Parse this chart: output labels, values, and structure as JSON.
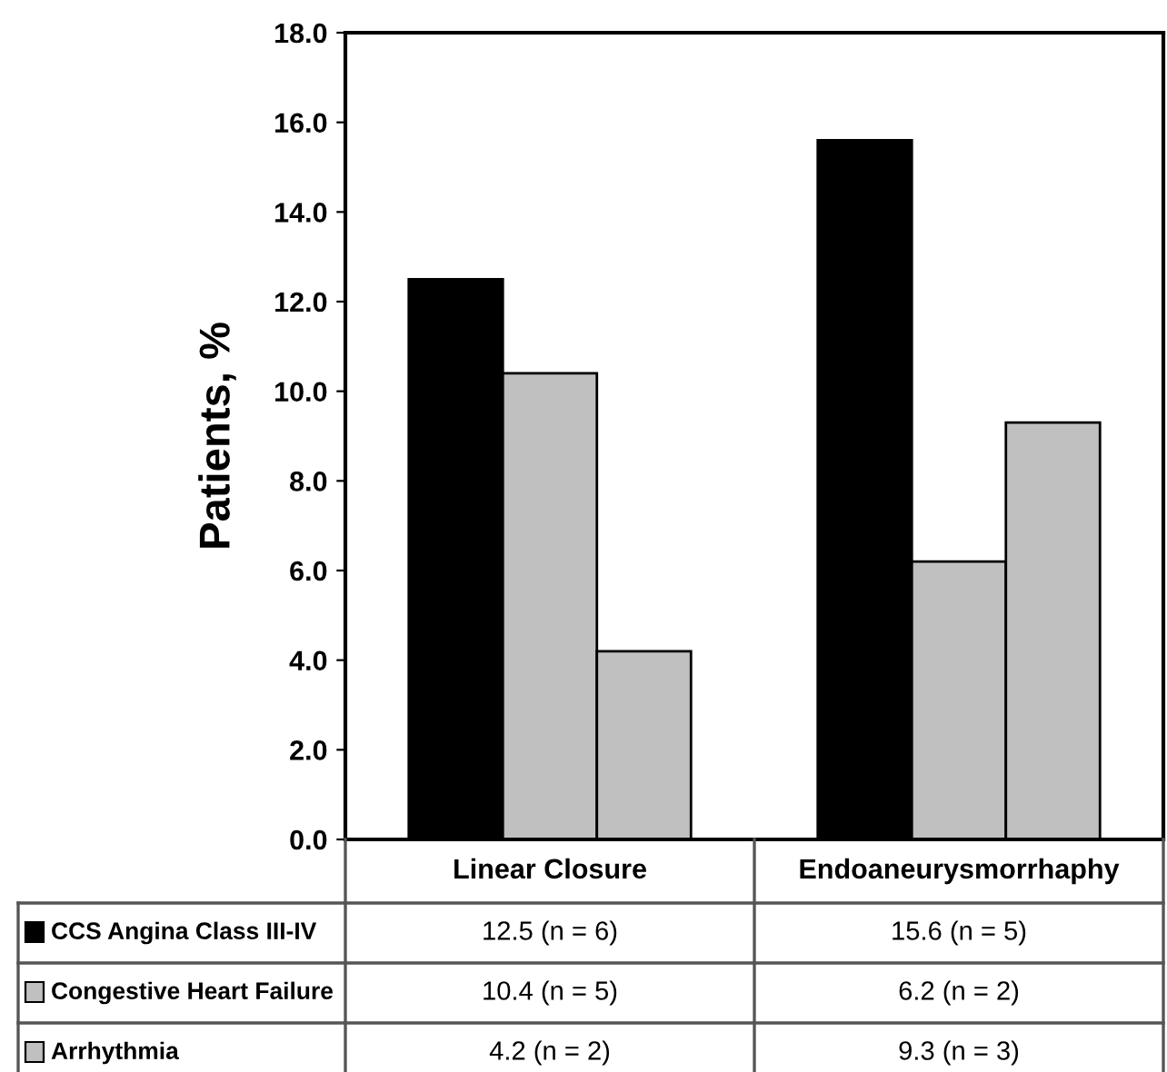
{
  "chart_data": {
    "type": "bar",
    "ylabel": "Patients, %",
    "categories": [
      "Linear Closure",
      "Endoaneurysmorrhaphy"
    ],
    "series": [
      {
        "name": "CCS Angina Class III-IV",
        "color": "#000000",
        "values": [
          12.5,
          15.6
        ],
        "value_labels": [
          "12.5 (n = 6)",
          "15.6 (n = 5)"
        ]
      },
      {
        "name": "Congestive Heart Failure",
        "color": "#c0c0c0",
        "values": [
          10.4,
          6.2
        ],
        "value_labels": [
          "10.4 (n = 5)",
          "6.2 (n = 2)"
        ]
      },
      {
        "name": "Arrhythmia",
        "color": "#c0c0c0",
        "values": [
          4.2,
          9.3
        ],
        "value_labels": [
          "4.2 (n = 2)",
          "9.3 (n = 3)"
        ]
      }
    ],
    "ylim": [
      0,
      18
    ],
    "yticks": [
      {
        "value": 0,
        "label": "0.0"
      },
      {
        "value": 2,
        "label": "2.0"
      },
      {
        "value": 4,
        "label": "4.0"
      },
      {
        "value": 6,
        "label": "6.0"
      },
      {
        "value": 8,
        "label": "8.0"
      },
      {
        "value": 10,
        "label": "10.0"
      },
      {
        "value": 12,
        "label": "12.0"
      },
      {
        "value": 14,
        "label": "14.0"
      },
      {
        "value": 16,
        "label": "16.0"
      },
      {
        "value": 18,
        "label": "18.0"
      }
    ],
    "grid": false,
    "legend": "bottom"
  }
}
